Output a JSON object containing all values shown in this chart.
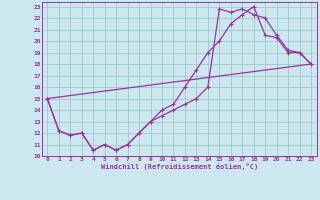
{
  "xlabel": "Windchill (Refroidissement éolien,°C)",
  "bg_color": "#cce8ee",
  "line_color": "#993399",
  "grid_color": "#99cccc",
  "xlim": [
    -0.5,
    23.5
  ],
  "ylim": [
    10,
    23.4
  ],
  "xticks": [
    0,
    1,
    2,
    3,
    4,
    5,
    6,
    7,
    8,
    9,
    10,
    11,
    12,
    13,
    14,
    15,
    16,
    17,
    18,
    19,
    20,
    21,
    22,
    23
  ],
  "yticks": [
    10,
    11,
    12,
    13,
    14,
    15,
    16,
    17,
    18,
    19,
    20,
    21,
    22,
    23
  ],
  "line1_x": [
    0,
    1,
    2,
    3,
    4,
    5,
    6,
    7,
    8,
    9,
    10,
    11,
    12,
    13,
    14,
    15,
    16,
    17,
    18,
    19,
    20,
    21,
    22,
    23
  ],
  "line1_y": [
    15.0,
    12.2,
    11.8,
    12.0,
    10.5,
    11.0,
    10.5,
    11.0,
    12.0,
    13.0,
    14.0,
    14.5,
    16.0,
    17.5,
    19.0,
    20.0,
    21.5,
    22.3,
    23.0,
    20.5,
    20.3,
    19.0,
    19.0,
    18.0
  ],
  "line2_x": [
    0,
    1,
    2,
    3,
    4,
    5,
    6,
    7,
    8,
    9,
    10,
    11,
    12,
    13,
    14,
    15,
    16,
    17,
    18,
    19,
    20,
    21,
    22,
    23
  ],
  "line2_y": [
    15.0,
    12.2,
    11.8,
    12.0,
    10.5,
    11.0,
    10.5,
    11.0,
    12.0,
    13.0,
    13.5,
    14.0,
    14.5,
    15.0,
    16.0,
    22.8,
    22.5,
    22.8,
    22.3,
    22.0,
    20.5,
    19.2,
    19.0,
    18.0
  ],
  "line3_x": [
    0,
    23
  ],
  "line3_y": [
    15.0,
    18.0
  ]
}
